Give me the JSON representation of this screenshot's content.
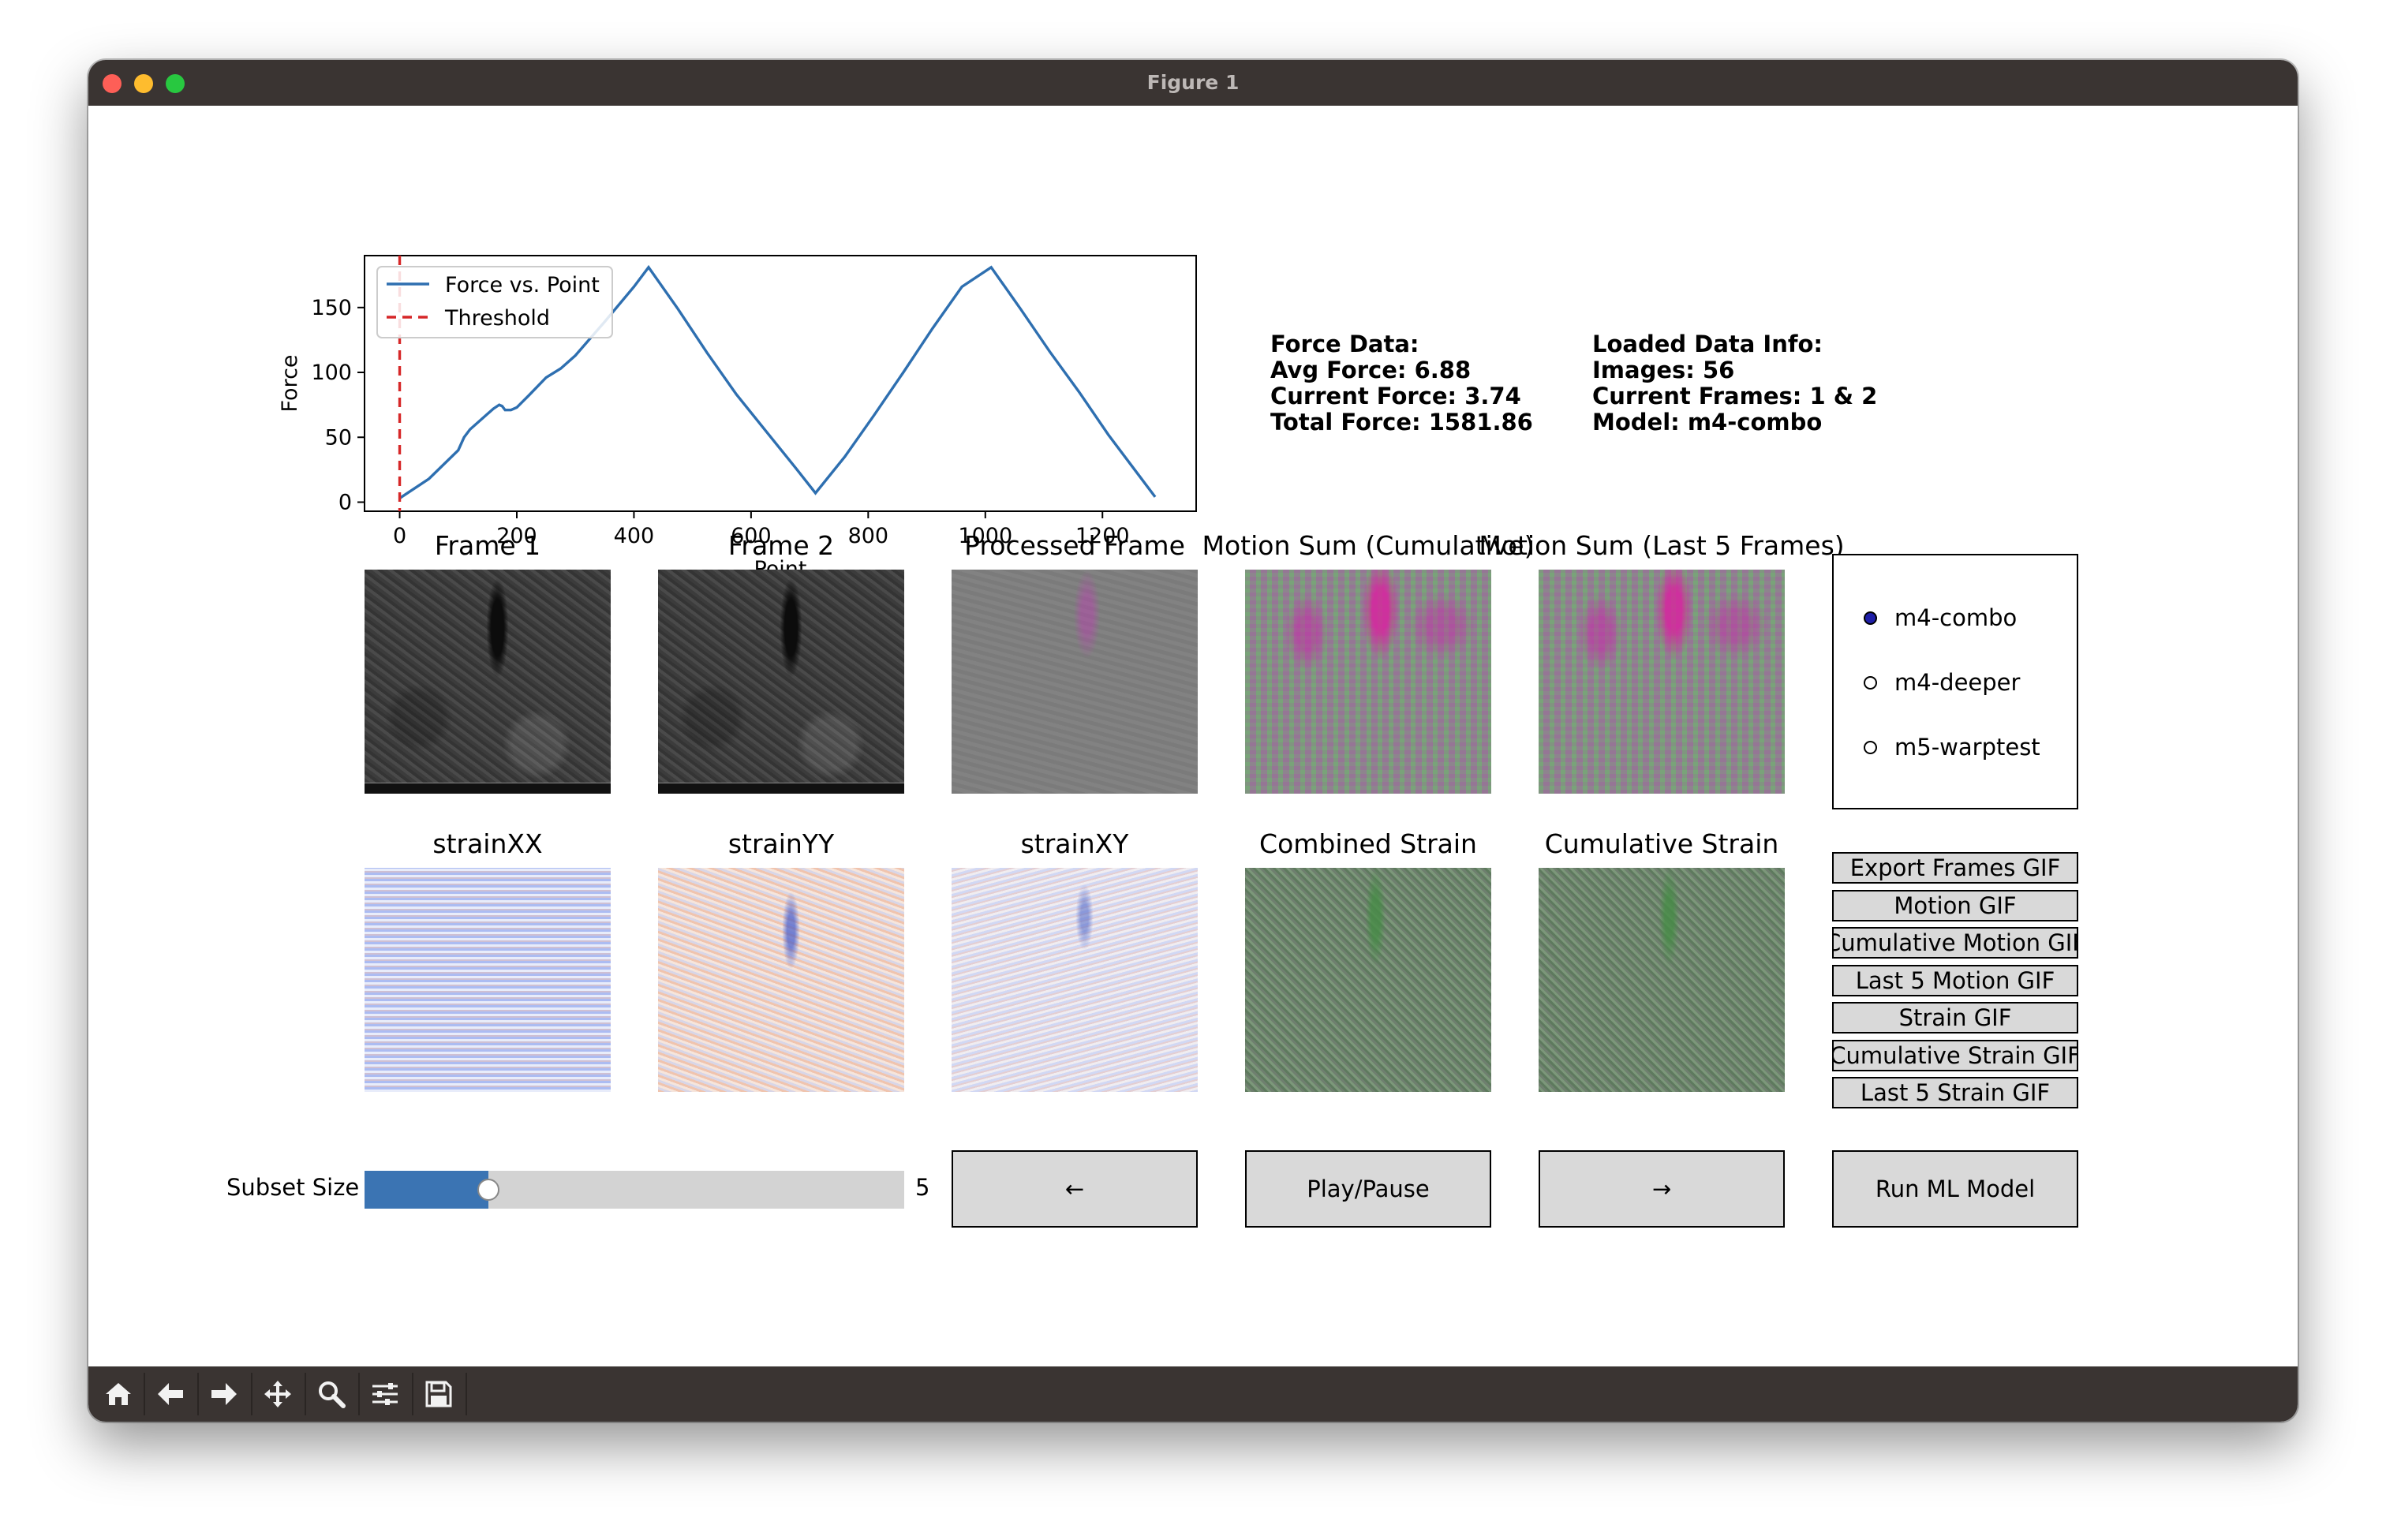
{
  "window": {
    "title": "Figure 1"
  },
  "plot": {
    "ylabel": "Force",
    "xlabel": "Point",
    "legend": [
      "Force vs. Point",
      "Threshold"
    ],
    "yticks": [
      "0",
      "50",
      "100",
      "150"
    ],
    "xticks": [
      "0",
      "200",
      "400",
      "600",
      "800",
      "1000",
      "1200"
    ],
    "line_color": "#2e6fb0",
    "threshold_color": "#d62728"
  },
  "chart_data": {
    "type": "line",
    "title": "",
    "xlabel": "Point",
    "ylabel": "Force",
    "xlim": [
      -60,
      1360
    ],
    "ylim": [
      -7,
      190
    ],
    "legend_position": "top-left",
    "series": [
      {
        "name": "Force vs. Point",
        "x": [
          0,
          50,
          100,
          110,
          120,
          150,
          160,
          170,
          175,
          180,
          190,
          200,
          220,
          250,
          275,
          300,
          350,
          400,
          425,
          475,
          525,
          575,
          625,
          675,
          710,
          760,
          810,
          860,
          910,
          960,
          1010,
          1060,
          1110,
          1160,
          1210,
          1260,
          1290
        ],
        "y": [
          3,
          18,
          40,
          50,
          56,
          68,
          72,
          75,
          74,
          71,
          71,
          73,
          82,
          96,
          103,
          113,
          139,
          166,
          181,
          149,
          115,
          83,
          55,
          27,
          7,
          35,
          67,
          100,
          134,
          166,
          181,
          149,
          116,
          85,
          52,
          22,
          4
        ]
      },
      {
        "name": "Threshold",
        "style": "dashed",
        "x": [
          0,
          0
        ],
        "y": [
          -7,
          190
        ]
      }
    ]
  },
  "info": {
    "force": [
      "Force Data:",
      "Avg Force: 6.88",
      "Current Force: 3.74",
      "Total Force: 1581.86"
    ],
    "loaded": [
      "Loaded Data Info:",
      "Images: 56",
      "Current Frames: 1 & 2",
      "Model: m4-combo"
    ]
  },
  "row1_titles": [
    "Frame 1",
    "Frame 2",
    "Processed Frame",
    "Motion Sum (Cumulative)",
    "Motion Sum (Last 5 Frames)"
  ],
  "row2_titles": [
    "strainXX",
    "strainYY",
    "strainXY",
    "Combined Strain",
    "Cumulative Strain"
  ],
  "models": {
    "options": [
      "m4-combo",
      "m4-deeper",
      "m5-warptest"
    ],
    "selected": "m4-combo"
  },
  "export_buttons": [
    "Export Frames GIF",
    "Motion GIF",
    "Cumulative Motion GIF",
    "Last 5 Motion GIF",
    "Strain GIF",
    "Cumulative Strain GIF",
    "Last 5 Strain GIF"
  ],
  "slider": {
    "label": "Subset Size",
    "value": 5,
    "value_text": "5",
    "fraction": 0.23
  },
  "controls": {
    "prev": "←",
    "play": "Play/Pause",
    "next": "→",
    "run": "Run ML Model"
  },
  "toolbar": [
    "home-icon",
    "back-icon",
    "forward-icon",
    "pan-icon",
    "zoom-icon",
    "configure-icon",
    "save-icon"
  ]
}
